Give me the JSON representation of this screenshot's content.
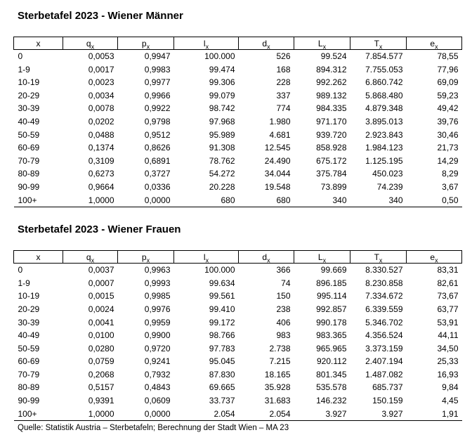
{
  "page": {
    "background": "#ffffff",
    "text_color": "#000000"
  },
  "columns": [
    {
      "base": "x",
      "sub": ""
    },
    {
      "base": "q",
      "sub": "x"
    },
    {
      "base": "p",
      "sub": "x"
    },
    {
      "base": "l",
      "sub": "x"
    },
    {
      "base": "d",
      "sub": "x"
    },
    {
      "base": "L",
      "sub": "x"
    },
    {
      "base": "T",
      "sub": "x"
    },
    {
      "base": "e",
      "sub": "x"
    }
  ],
  "tables": [
    {
      "title": "Sterbetafel 2023 - Wiener Männer",
      "rows": [
        [
          "0",
          "0,0053",
          "0,9947",
          "100.000",
          "526",
          "99.524",
          "7.854.577",
          "78,55"
        ],
        [
          "1-9",
          "0,0017",
          "0,9983",
          "99.474",
          "168",
          "894.312",
          "7.755.053",
          "77,96"
        ],
        [
          "10-19",
          "0,0023",
          "0,9977",
          "99.306",
          "228",
          "992.262",
          "6.860.742",
          "69,09"
        ],
        [
          "20-29",
          "0,0034",
          "0,9966",
          "99.079",
          "337",
          "989.132",
          "5.868.480",
          "59,23"
        ],
        [
          "30-39",
          "0,0078",
          "0,9922",
          "98.742",
          "774",
          "984.335",
          "4.879.348",
          "49,42"
        ],
        [
          "40-49",
          "0,0202",
          "0,9798",
          "97.968",
          "1.980",
          "971.170",
          "3.895.013",
          "39,76"
        ],
        [
          "50-59",
          "0,0488",
          "0,9512",
          "95.989",
          "4.681",
          "939.720",
          "2.923.843",
          "30,46"
        ],
        [
          "60-69",
          "0,1374",
          "0,8626",
          "91.308",
          "12.545",
          "858.928",
          "1.984.123",
          "21,73"
        ],
        [
          "70-79",
          "0,3109",
          "0,6891",
          "78.762",
          "24.490",
          "675.172",
          "1.125.195",
          "14,29"
        ],
        [
          "80-89",
          "0,6273",
          "0,3727",
          "54.272",
          "34.044",
          "375.784",
          "450.023",
          "8,29"
        ],
        [
          "90-99",
          "0,9664",
          "0,0336",
          "20.228",
          "19.548",
          "73.899",
          "74.239",
          "3,67"
        ],
        [
          "100+",
          "1,0000",
          "0,0000",
          "680",
          "680",
          "340",
          "340",
          "0,50"
        ]
      ]
    },
    {
      "title": "Sterbetafel 2023 - Wiener Frauen",
      "rows": [
        [
          "0",
          "0,0037",
          "0,9963",
          "100.000",
          "366",
          "99.669",
          "8.330.527",
          "83,31"
        ],
        [
          "1-9",
          "0,0007",
          "0,9993",
          "99.634",
          "74",
          "896.185",
          "8.230.858",
          "82,61"
        ],
        [
          "10-19",
          "0,0015",
          "0,9985",
          "99.561",
          "150",
          "995.114",
          "7.334.672",
          "73,67"
        ],
        [
          "20-29",
          "0,0024",
          "0,9976",
          "99.410",
          "238",
          "992.857",
          "6.339.559",
          "63,77"
        ],
        [
          "30-39",
          "0,0041",
          "0,9959",
          "99.172",
          "406",
          "990.178",
          "5.346.702",
          "53,91"
        ],
        [
          "40-49",
          "0,0100",
          "0,9900",
          "98.766",
          "983",
          "983.365",
          "4.356.524",
          "44,11"
        ],
        [
          "50-59",
          "0,0280",
          "0,9720",
          "97.783",
          "2.738",
          "965.965",
          "3.373.159",
          "34,50"
        ],
        [
          "60-69",
          "0,0759",
          "0,9241",
          "95.045",
          "7.215",
          "920.112",
          "2.407.194",
          "25,33"
        ],
        [
          "70-79",
          "0,2068",
          "0,7932",
          "87.830",
          "18.165",
          "801.345",
          "1.487.082",
          "16,93"
        ],
        [
          "80-89",
          "0,5157",
          "0,4843",
          "69.665",
          "35.928",
          "535.578",
          "685.737",
          "9,84"
        ],
        [
          "90-99",
          "0,9391",
          "0,0609",
          "33.737",
          "31.683",
          "146.232",
          "150.159",
          "4,45"
        ],
        [
          "100+",
          "1,0000",
          "0,0000",
          "2.054",
          "2.054",
          "3.927",
          "3.927",
          "1,91"
        ]
      ]
    }
  ],
  "source": "Quelle: Statistik Austria – Sterbetafeln; Berechnung der Stadt Wien – MA 23"
}
